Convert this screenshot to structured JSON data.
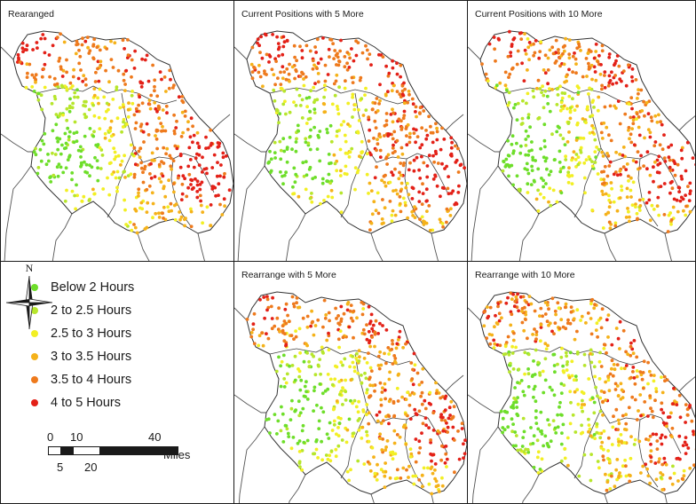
{
  "panels": [
    {
      "title": "Rearanged",
      "scheme": "rearranged"
    },
    {
      "title": "Current Positions with 5 More",
      "scheme": "current5"
    },
    {
      "title": "Current Positions with 10 More",
      "scheme": "current10"
    },
    {
      "title": "Rearrange with 5 More",
      "scheme": "rearrange5"
    },
    {
      "title": "Rearrange with 10 More",
      "scheme": "rearrange10"
    }
  ],
  "legend": {
    "items": [
      {
        "label": "Below 2 Hours",
        "color": "#6ede2a"
      },
      {
        "label": "2 to 2.5 Hours",
        "color": "#b7e62c"
      },
      {
        "label": "2.5 to 3 Hours",
        "color": "#f2ef24"
      },
      {
        "label": "3 to 3.5 Hours",
        "color": "#f5b21a"
      },
      {
        "label": "3.5 to 4 Hours",
        "color": "#ee7a1d"
      },
      {
        "label": "4 to 5 Hours",
        "color": "#e32118"
      }
    ]
  },
  "compass": {
    "north_label": "N"
  },
  "scale_bar": {
    "top_labels": [
      "0",
      "10",
      "40"
    ],
    "bottom_labels": [
      "5",
      "20"
    ],
    "unit": "Miles"
  }
}
